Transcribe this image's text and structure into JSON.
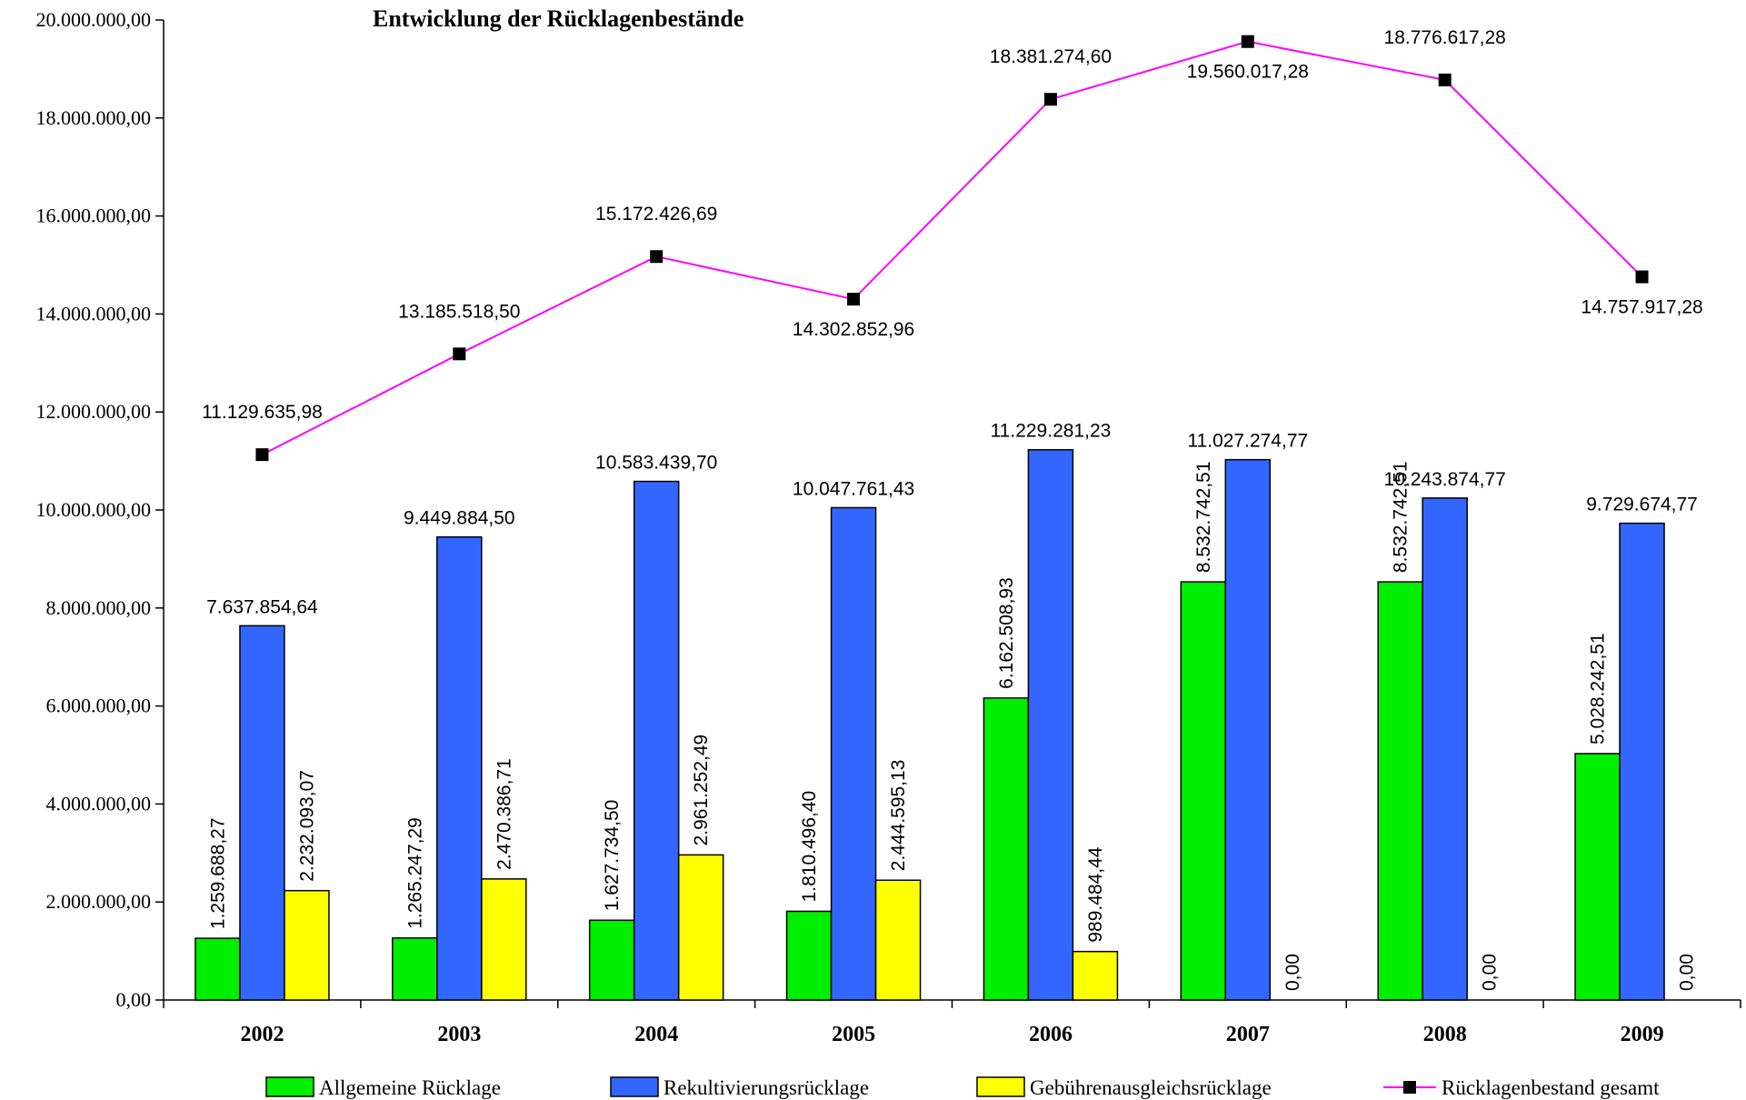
{
  "chart_data": {
    "type": "bar+line",
    "title": "Entwicklung der Rücklagenbestände",
    "categories": [
      "2002",
      "2003",
      "2004",
      "2005",
      "2006",
      "2007",
      "2008",
      "2009"
    ],
    "y_ticks": [
      "0,00",
      "2.000.000,00",
      "4.000.000,00",
      "6.000.000,00",
      "8.000.000,00",
      "10.000.000,00",
      "12.000.000,00",
      "14.000.000,00",
      "16.000.000,00",
      "18.000.000,00",
      "20.000.000,00"
    ],
    "ylim": [
      0,
      20000000
    ],
    "grid": false,
    "legend_position": "bottom",
    "bar_series": [
      {
        "name": "Allgemeine Rücklage",
        "color": "#00ee00",
        "values": [
          1259688.27,
          1265247.29,
          1627734.5,
          1810496.4,
          6162508.93,
          8532742.51,
          8532742.51,
          5028242.51
        ],
        "labels": [
          "1.259.688,27",
          "1.265.247,29",
          "1.627.734,50",
          "1.810.496,40",
          "6.162.508,93",
          "8.532.742,51",
          "8.532.742,51",
          "5.028.242,51"
        ],
        "label_orientation": "vertical"
      },
      {
        "name": "Rekultivierungsrücklage",
        "color": "#3366ff",
        "values": [
          7637854.64,
          9449884.5,
          10583439.7,
          10047761.43,
          11229281.23,
          11027274.77,
          10243874.77,
          9729674.77
        ],
        "labels": [
          "7.637.854,64",
          "9.449.884,50",
          "10.583.439,70",
          "10.047.761,43",
          "11.229.281,23",
          "11.027.274,77",
          "10.243.874,77",
          "9.729.674,77"
        ],
        "label_orientation": "horizontal"
      },
      {
        "name": "Gebührenausgleichsrücklage",
        "color": "#ffff00",
        "values": [
          2232093.07,
          2470386.71,
          2961252.49,
          2444595.13,
          989484.44,
          0,
          0,
          0
        ],
        "labels": [
          "2.232.093,07",
          "2.470.386,71",
          "2.961.252,49",
          "2.444.595,13",
          "989.484,44",
          "0,00",
          "0,00",
          "0,00"
        ],
        "label_orientation": "vertical"
      }
    ],
    "line_series": {
      "name": "Rücklagenbestand gesamt",
      "color": "#ff00ff",
      "marker_color": "#000000",
      "values": [
        11129635.98,
        13185518.5,
        15172426.69,
        14302852.96,
        18381274.6,
        19560017.28,
        18776617.28,
        14757917.28
      ],
      "labels": [
        "11.129.635,98",
        "13.185.518,50",
        "15.172.426,69",
        "14.302.852,96",
        "18.381.274,60",
        "19.560.017,28",
        "18.776.617,28",
        "14.757.917,28"
      ]
    }
  }
}
